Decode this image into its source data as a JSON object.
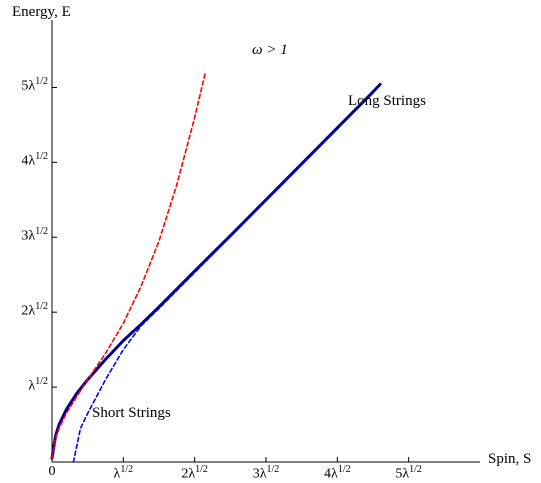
{
  "chart_data": {
    "type": "line",
    "xlabel": "Spin, S",
    "ylabel": "Energy, E",
    "xlim": [
      0,
      6
    ],
    "ylim": [
      0,
      5.9
    ],
    "x_tick_labels": [
      "0",
      "λ1/2",
      "2λ1/2",
      "3λ1/2",
      "4λ1/2",
      "5λ1/2"
    ],
    "x_tick_values": [
      0,
      1,
      2,
      3,
      4,
      5
    ],
    "y_tick_labels": [
      "λ1/2",
      "2λ1/2",
      "3λ1/2",
      "4λ1/2",
      "5λ1/2"
    ],
    "y_tick_values": [
      1,
      2,
      3,
      4,
      5
    ],
    "annotations": [
      "ω > 1",
      "Long Strings",
      "Short Strings"
    ],
    "series": [
      {
        "style": "solid",
        "color": "#00008b",
        "x": [
          0,
          0.05,
          0.1,
          0.2,
          0.35,
          0.5,
          0.75,
          1,
          1.25,
          1.5,
          2,
          2.5,
          3,
          3.5,
          4,
          4.5,
          4.6
        ],
        "y": [
          0.05,
          0.35,
          0.5,
          0.7,
          0.92,
          1.1,
          1.37,
          1.62,
          1.84,
          2.07,
          2.55,
          3.02,
          3.5,
          3.98,
          4.46,
          4.94,
          5.04
        ]
      },
      {
        "style": "dashed",
        "color": "#ff0000",
        "x": [
          0,
          0.05,
          0.1,
          0.2,
          0.35,
          0.5,
          0.75,
          1,
          1.25,
          1.5,
          1.75,
          2,
          2.15
        ],
        "y": [
          0.05,
          0.32,
          0.45,
          0.65,
          0.88,
          1.1,
          1.45,
          1.85,
          2.35,
          2.95,
          3.7,
          4.6,
          5.2
        ]
      },
      {
        "style": "dashed",
        "color": "#0000ff",
        "x": [
          0.3,
          0.4,
          0.5,
          0.75,
          1,
          1.25,
          1.5,
          2,
          2.5,
          3,
          3.5,
          4
        ],
        "y": [
          0,
          0.45,
          0.65,
          1.1,
          1.5,
          1.82,
          2.05,
          2.53,
          3.01,
          3.49,
          3.97,
          4.45
        ]
      }
    ]
  }
}
